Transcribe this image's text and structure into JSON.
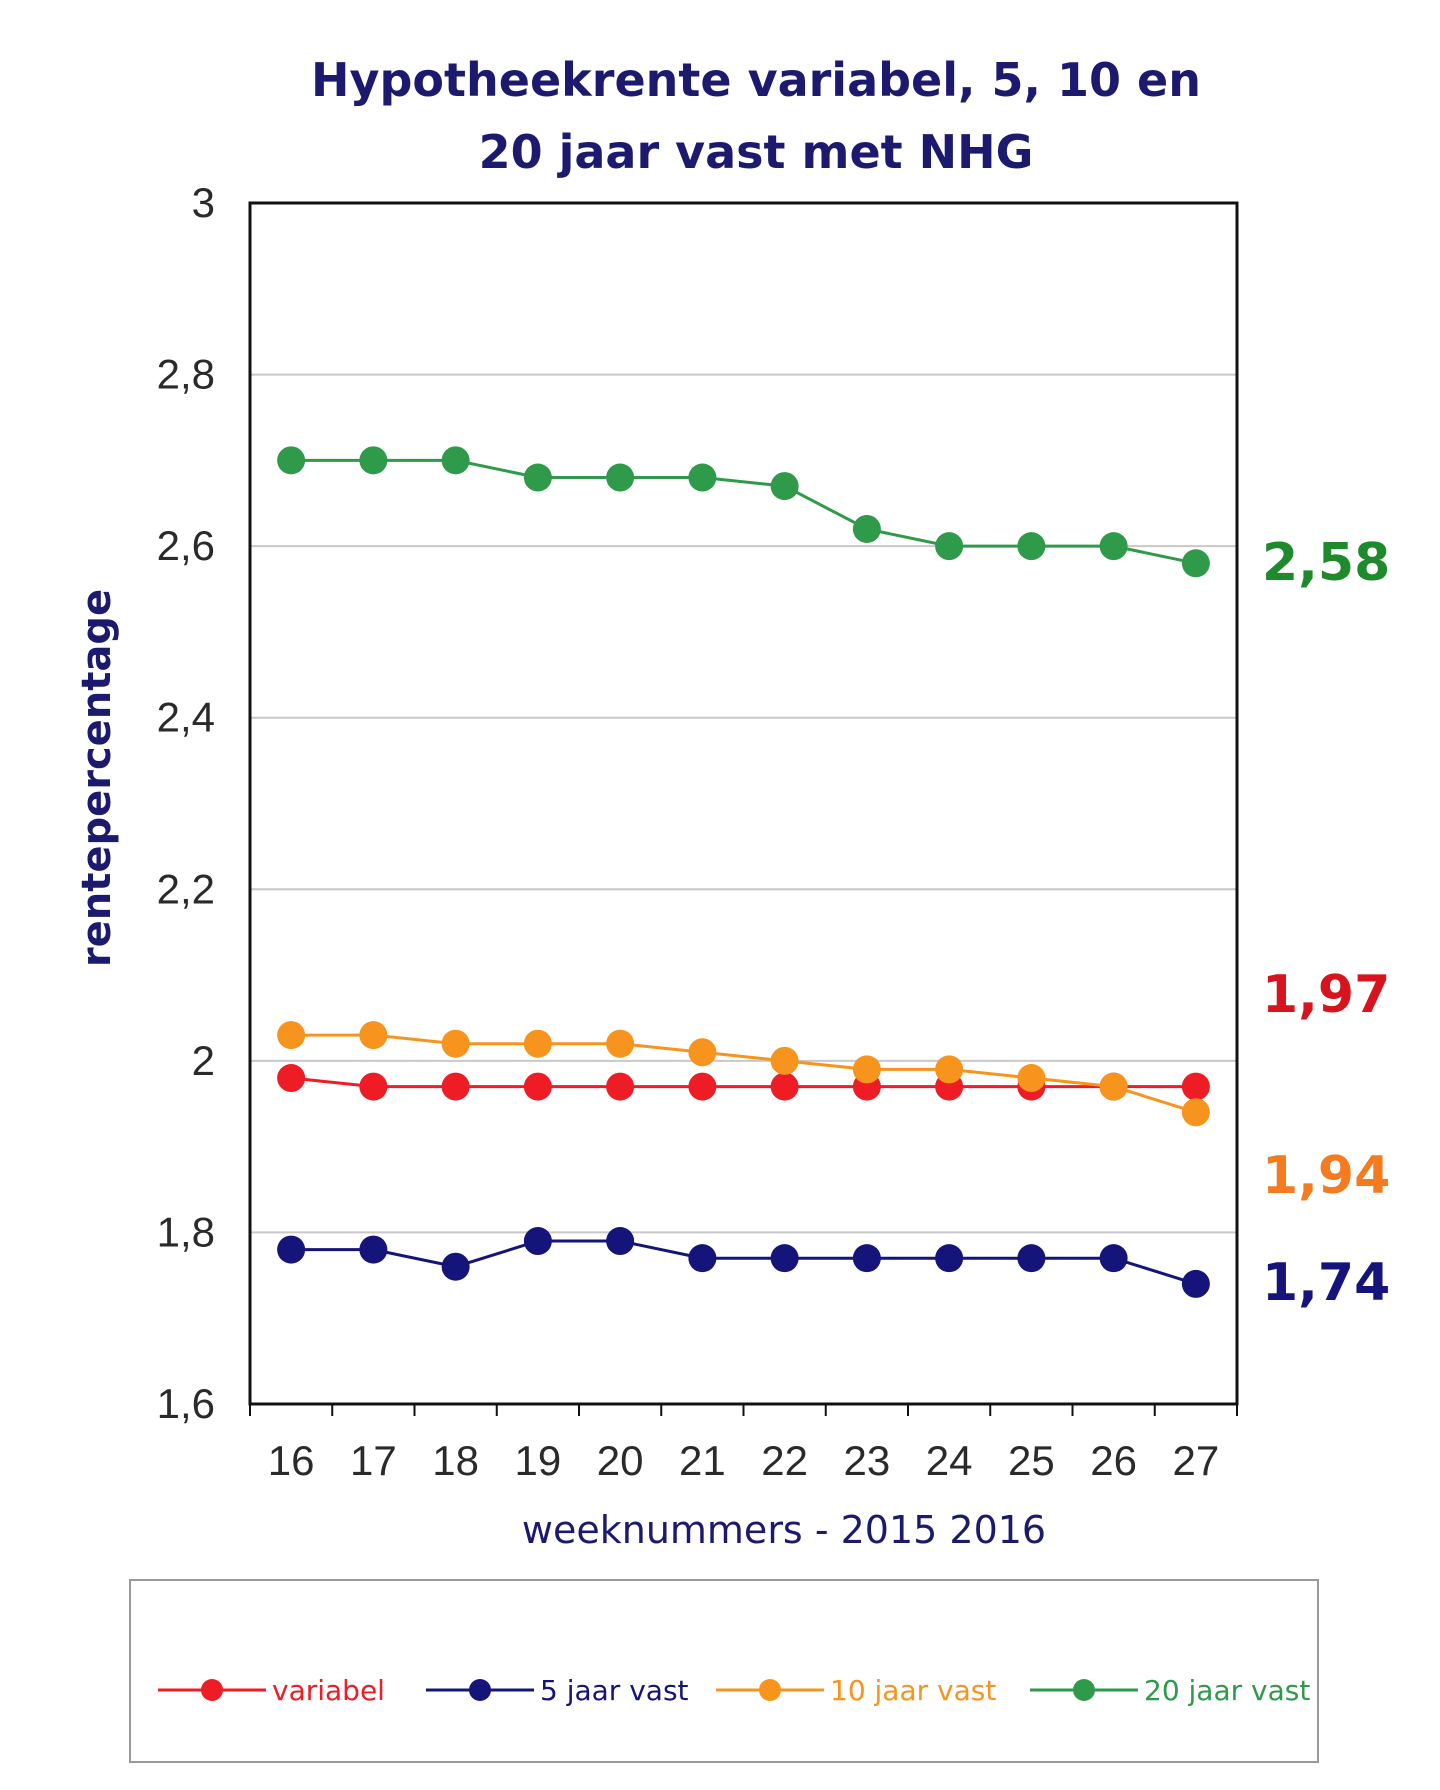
{
  "chart_data": {
    "type": "line",
    "title_lines": [
      "Hypotheekrente variabel, 5, 10 en",
      "20 jaar vast met NHG"
    ],
    "xlabel": "weeknummers - 2015 2016",
    "ylabel": "rentepercentage",
    "x": [
      "16",
      "17",
      "18",
      "19",
      "20",
      "21",
      "22",
      "23",
      "24",
      "25",
      "26",
      "27"
    ],
    "y_ticks": [
      "1,6",
      "1,8",
      "2",
      "2,2",
      "2,4",
      "2,6",
      "2,8",
      "3"
    ],
    "y_tick_values": [
      1.6,
      1.8,
      2.0,
      2.2,
      2.4,
      2.6,
      2.8,
      3.0
    ],
    "ylim": [
      1.6,
      3.0
    ],
    "grid": true,
    "legend_position": "bottom",
    "series": [
      {
        "name": "variabel",
        "color": "#ee1c25",
        "end_label": "1,97",
        "end_label_color": "#d7131e",
        "values": [
          1.98,
          1.97,
          1.97,
          1.97,
          1.97,
          1.97,
          1.97,
          1.97,
          1.97,
          1.97,
          1.97,
          1.97
        ]
      },
      {
        "name": "5 jaar vast",
        "color": "#14147a",
        "end_label": "1,74",
        "end_label_color": "#14147a",
        "values": [
          1.78,
          1.78,
          1.76,
          1.79,
          1.79,
          1.77,
          1.77,
          1.77,
          1.77,
          1.77,
          1.77,
          1.74
        ]
      },
      {
        "name": "10 jaar vast",
        "color": "#f7941d",
        "end_label": "1,94",
        "end_label_color": "#f47b20",
        "values": [
          2.03,
          2.03,
          2.02,
          2.02,
          2.02,
          2.01,
          2.0,
          1.99,
          1.99,
          1.98,
          1.97,
          1.94
        ]
      },
      {
        "name": "20 jaar vast",
        "color": "#2e9a4a",
        "end_label": "2,58",
        "end_label_color": "#1f8a2c",
        "values": [
          2.7,
          2.7,
          2.7,
          2.68,
          2.68,
          2.68,
          2.67,
          2.62,
          2.6,
          2.6,
          2.6,
          2.58
        ]
      }
    ]
  }
}
